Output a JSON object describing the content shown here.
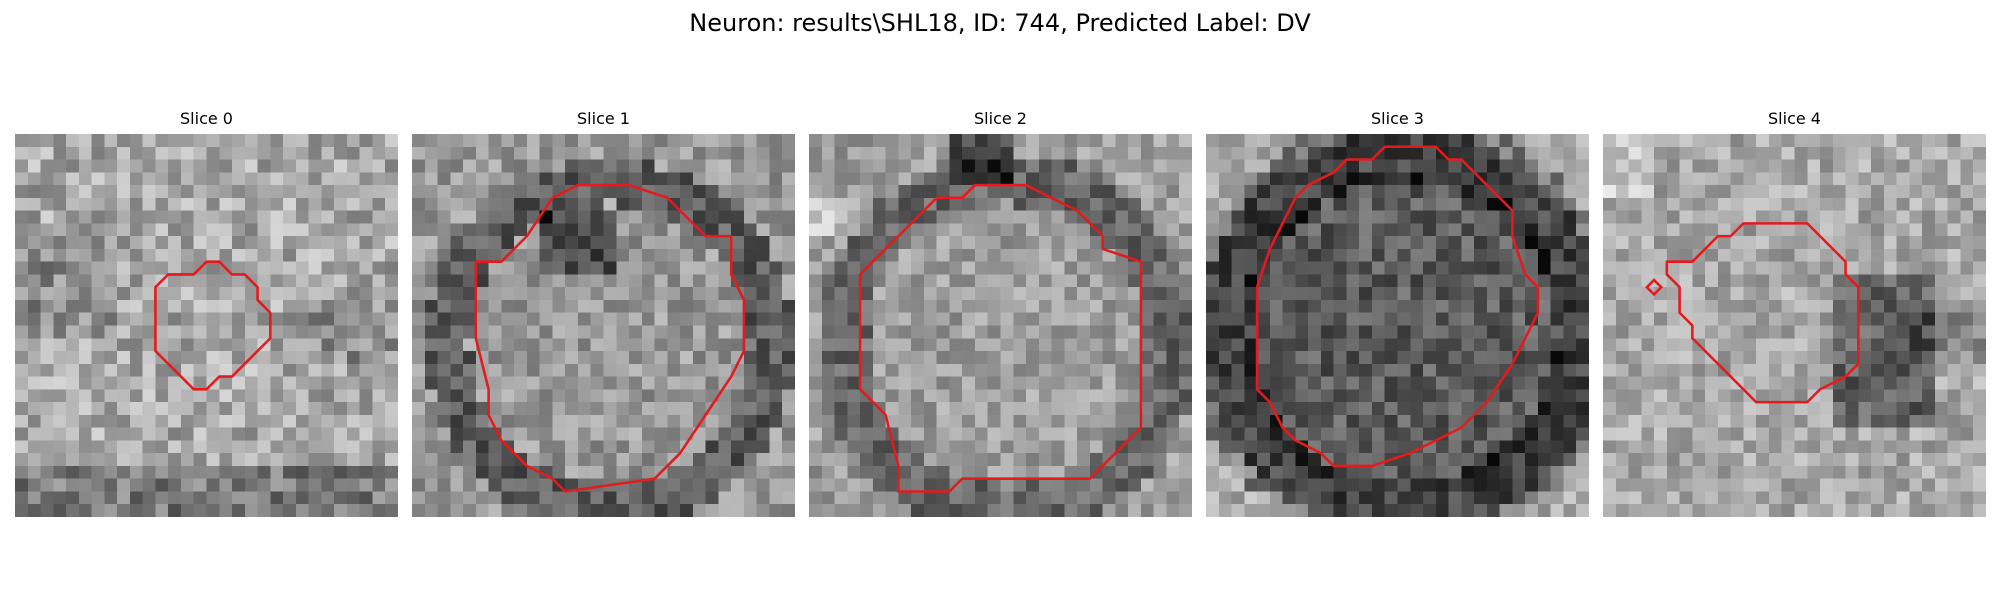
{
  "figure": {
    "title": "Neuron: results\\SHL18, ID: 744, Predicted Label: DV"
  },
  "colors": {
    "contour": "#e41a1c",
    "background": "#ffffff",
    "text": "#000000"
  },
  "slices": [
    {
      "title": "Slice 0"
    },
    {
      "title": "Slice 1"
    },
    {
      "title": "Slice 2"
    },
    {
      "title": "Slice 3"
    },
    {
      "title": "Slice 4"
    }
  ]
}
